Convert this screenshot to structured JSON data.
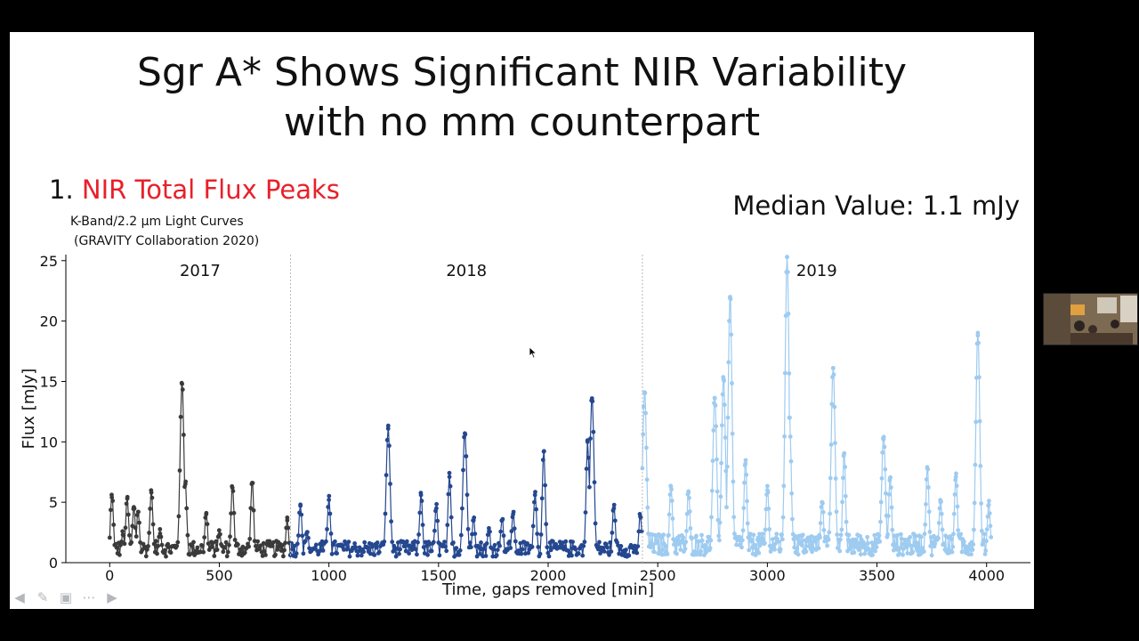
{
  "slide": {
    "title_line1": "Sgr A* Shows Significant NIR Variability",
    "title_line2": "with no mm counterpart",
    "section_number": "1.",
    "section_title": "NIR Total Flux Peaks",
    "caption_line1": "K-Band/2.2 μm Light Curves",
    "caption_line2": "(GRAVITY Collaboration 2020)",
    "median_label": "Median Value: 1.1 mJy"
  },
  "colors": {
    "series_2017": "#3a3a3a",
    "series_2018": "#24478f",
    "series_2019": "#9ecbf0",
    "accent_red": "#e8202a"
  },
  "chart_data": {
    "type": "line",
    "xlabel": "Time, gaps removed [min]",
    "ylabel": "Flux [mJy]",
    "xlim": [
      -200,
      4200
    ],
    "ylim": [
      0,
      25.5
    ],
    "xticks": [
      0,
      500,
      1000,
      1500,
      2000,
      2500,
      3000,
      3500,
      4000
    ],
    "yticks": [
      0,
      5,
      10,
      15,
      20,
      25
    ],
    "year_boundaries": [
      825,
      2430
    ],
    "series": [
      {
        "name": "2017",
        "x_range": [
          0,
          825
        ],
        "peaks": [
          [
            10,
            5.4
          ],
          [
            60,
            2.3
          ],
          [
            80,
            5.3
          ],
          [
            110,
            4.6
          ],
          [
            130,
            4.2
          ],
          [
            190,
            5.8
          ],
          [
            230,
            2.4
          ],
          [
            330,
            14.8
          ],
          [
            345,
            6.5
          ],
          [
            440,
            4.0
          ],
          [
            500,
            2.3
          ],
          [
            560,
            6.2
          ],
          [
            650,
            6.6
          ],
          [
            810,
            3.5
          ]
        ]
      },
      {
        "name": "2018",
        "x_range": [
          825,
          2430
        ],
        "peaks": [
          [
            870,
            4.7
          ],
          [
            900,
            2.5
          ],
          [
            1000,
            5.2
          ],
          [
            1270,
            11.1
          ],
          [
            1420,
            5.6
          ],
          [
            1490,
            4.5
          ],
          [
            1550,
            7.1
          ],
          [
            1620,
            10.7
          ],
          [
            1660,
            3.5
          ],
          [
            1730,
            2.6
          ],
          [
            1790,
            3.5
          ],
          [
            1840,
            4.0
          ],
          [
            1940,
            5.6
          ],
          [
            1980,
            9.2
          ],
          [
            2180,
            10.0
          ],
          [
            2200,
            13.6
          ],
          [
            2300,
            4.5
          ],
          [
            2420,
            3.8
          ]
        ]
      },
      {
        "name": "2019",
        "x_range": [
          2430,
          4020
        ],
        "peaks": [
          [
            2440,
            14.1
          ],
          [
            2560,
            6.3
          ],
          [
            2640,
            5.8
          ],
          [
            2760,
            13.6
          ],
          [
            2800,
            15.2
          ],
          [
            2830,
            22.0
          ],
          [
            2900,
            8.2
          ],
          [
            3000,
            6.0
          ],
          [
            3090,
            25.3
          ],
          [
            3100,
            12.0
          ],
          [
            3250,
            5.0
          ],
          [
            3300,
            16.1
          ],
          [
            3350,
            9.0
          ],
          [
            3530,
            10.2
          ],
          [
            3560,
            7.0
          ],
          [
            3730,
            7.8
          ],
          [
            3790,
            5.0
          ],
          [
            3860,
            7.1
          ],
          [
            3960,
            18.8
          ],
          [
            4010,
            4.8
          ]
        ]
      }
    ]
  },
  "toolbar": {
    "icons": [
      "arrow-left-icon",
      "pen-icon",
      "slides-icon",
      "more-icon",
      "arrow-right-icon"
    ]
  }
}
